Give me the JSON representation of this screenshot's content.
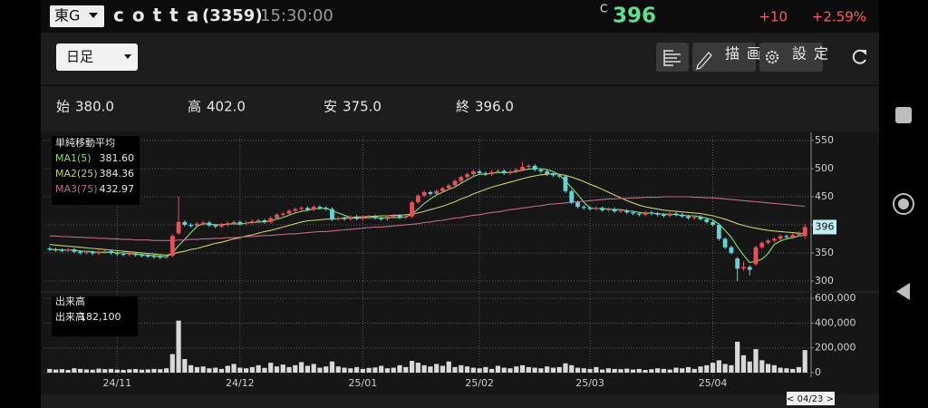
{
  "header": {
    "market": "東G",
    "name": "cotta",
    "code": "(3359)",
    "time": "15:30:00",
    "price_flag": "C",
    "price": "396",
    "change": "+10",
    "change_pct": "+2.59%"
  },
  "toolbar": {
    "period": "日足",
    "draw": "描画",
    "settings": "設定"
  },
  "ohlc": [
    {
      "label": "始",
      "value": "380.0"
    },
    {
      "label": "高",
      "value": "402.0"
    },
    {
      "label": "安",
      "value": "375.0"
    },
    {
      "label": "終",
      "value": "396.0"
    }
  ],
  "chart_data": {
    "type": "candlestick",
    "open": [
      358,
      356,
      355,
      354,
      356,
      352,
      350,
      351,
      349,
      352,
      353,
      350,
      348,
      347,
      349,
      346,
      345,
      344,
      343,
      342,
      345,
      385,
      405,
      400,
      398,
      402,
      404,
      399,
      397,
      400,
      403,
      405,
      402,
      404,
      406,
      408,
      405,
      412,
      418,
      420,
      425,
      428,
      430,
      427,
      432,
      430,
      428,
      410,
      412,
      410,
      414,
      411,
      413,
      415,
      412,
      410,
      414,
      416,
      413,
      415,
      440,
      452,
      458,
      455,
      460,
      465,
      470,
      478,
      485,
      490,
      495,
      492,
      490,
      494,
      496,
      492,
      495,
      498,
      503,
      505,
      498,
      495,
      490,
      488,
      486,
      460,
      440,
      432,
      430,
      428,
      430,
      426,
      428,
      424,
      425,
      422,
      420,
      418,
      422,
      420,
      418,
      416,
      420,
      418,
      415,
      412,
      414,
      410,
      405,
      400,
      375,
      360,
      340,
      322,
      325,
      330,
      360,
      368,
      372,
      375,
      380,
      378,
      382,
      380
    ],
    "high": [
      361,
      359,
      358,
      359,
      359,
      355,
      354,
      354,
      355,
      356,
      356,
      353,
      351,
      352,
      352,
      349,
      348,
      347,
      346,
      346,
      383,
      450,
      408,
      403,
      405,
      407,
      407,
      402,
      403,
      406,
      408,
      408,
      407,
      409,
      411,
      411,
      415,
      421,
      423,
      428,
      431,
      433,
      433,
      435,
      435,
      433,
      431,
      415,
      415,
      417,
      417,
      416,
      418,
      418,
      415,
      417,
      419,
      419,
      418,
      443,
      455,
      461,
      461,
      463,
      468,
      473,
      481,
      488,
      493,
      498,
      498,
      495,
      497,
      499,
      499,
      498,
      501,
      512,
      508,
      508,
      501,
      498,
      493,
      491,
      489,
      463,
      443,
      435,
      433,
      433,
      433,
      431,
      431,
      428,
      428,
      425,
      423,
      425,
      425,
      423,
      421,
      423,
      423,
      421,
      418,
      417,
      417,
      413,
      408,
      403,
      378,
      363,
      343,
      335,
      328,
      363,
      371,
      375,
      378,
      383,
      383,
      385,
      388,
      402
    ],
    "low": [
      353,
      352,
      351,
      351,
      349,
      347,
      347,
      346,
      346,
      349,
      347,
      345,
      344,
      344,
      343,
      342,
      341,
      340,
      339,
      339,
      342,
      382,
      397,
      395,
      395,
      399,
      396,
      394,
      394,
      397,
      400,
      399,
      399,
      401,
      403,
      402,
      402,
      409,
      415,
      417,
      422,
      425,
      424,
      424,
      427,
      425,
      407,
      407,
      407,
      407,
      408,
      408,
      410,
      409,
      407,
      407,
      411,
      410,
      410,
      412,
      437,
      449,
      452,
      452,
      457,
      462,
      467,
      475,
      482,
      487,
      489,
      487,
      487,
      491,
      489,
      489,
      492,
      495,
      500,
      495,
      492,
      487,
      485,
      483,
      457,
      437,
      429,
      427,
      425,
      425,
      423,
      423,
      421,
      421,
      419,
      417,
      415,
      415,
      417,
      415,
      413,
      413,
      415,
      412,
      409,
      409,
      407,
      402,
      397,
      372,
      357,
      347,
      300,
      318,
      310,
      327,
      357,
      365,
      369,
      372,
      375,
      375,
      379,
      375
    ],
    "close": [
      356,
      355,
      354,
      356,
      352,
      350,
      351,
      349,
      352,
      353,
      350,
      348,
      347,
      349,
      346,
      345,
      344,
      343,
      342,
      343,
      380,
      405,
      400,
      398,
      402,
      404,
      399,
      397,
      400,
      403,
      405,
      402,
      404,
      406,
      408,
      405,
      412,
      418,
      420,
      425,
      428,
      430,
      427,
      432,
      430,
      428,
      410,
      412,
      410,
      414,
      411,
      413,
      415,
      412,
      410,
      414,
      416,
      413,
      415,
      440,
      452,
      458,
      455,
      460,
      465,
      470,
      478,
      485,
      490,
      495,
      492,
      490,
      494,
      496,
      492,
      495,
      498,
      503,
      505,
      498,
      495,
      490,
      488,
      486,
      460,
      440,
      432,
      430,
      428,
      430,
      426,
      428,
      424,
      425,
      422,
      420,
      418,
      422,
      420,
      418,
      416,
      420,
      418,
      415,
      412,
      414,
      410,
      405,
      400,
      375,
      360,
      350,
      322,
      325,
      320,
      360,
      368,
      372,
      375,
      380,
      378,
      382,
      385,
      396
    ],
    "up_color": "#e8505a",
    "down_color": "#63d3da",
    "xlim": [
      -1,
      124
    ],
    "xticks": [
      {
        "value": 11,
        "label": "24/11"
      },
      {
        "value": 31,
        "label": "24/12"
      },
      {
        "value": 51,
        "label": "25/01"
      },
      {
        "value": 70,
        "label": "25/02"
      },
      {
        "value": 88,
        "label": "25/03"
      },
      {
        "value": 108,
        "label": "25/04"
      }
    ],
    "ylim": [
      287,
      558
    ],
    "yticks": [
      300,
      350,
      400,
      450,
      500,
      550
    ],
    "grid": true,
    "ma_title": "単純移動平均",
    "series": [
      {
        "name": "MA1(5)",
        "color": "#7fe07a",
        "current": {
          "value": 381.6,
          "label": "381.60"
        },
        "values": [
          356,
          356,
          355,
          355,
          355,
          353,
          353,
          352,
          351,
          351,
          351,
          350,
          350,
          349,
          348,
          347,
          346,
          345,
          344,
          343,
          350,
          363,
          374,
          386,
          397,
          402,
          401,
          400,
          400,
          401,
          402,
          401,
          403,
          404,
          405,
          405,
          407,
          410,
          413,
          417,
          421,
          424,
          426,
          428,
          429,
          430,
          425,
          421,
          417,
          413,
          411,
          412,
          413,
          413,
          412,
          413,
          413,
          413,
          414,
          419,
          428,
          438,
          446,
          453,
          458,
          463,
          467,
          474,
          480,
          486,
          490,
          490,
          492,
          493,
          493,
          493,
          495,
          497,
          499,
          500,
          500,
          498,
          495,
          489,
          478,
          466,
          454,
          440,
          430,
          429,
          429,
          428,
          427,
          427,
          425,
          424,
          422,
          421,
          421,
          420,
          419,
          419,
          418,
          417,
          416,
          416,
          414,
          412,
          409,
          401,
          390,
          378,
          361,
          346,
          333,
          335,
          339,
          349,
          365,
          371,
          375,
          377,
          380,
          381.6
        ]
      },
      {
        "name": "MA2(25)",
        "color": "#c8cf6a",
        "current": {
          "value": 384.36,
          "label": "384.36"
        },
        "values": [
          365,
          364,
          363,
          362,
          361,
          360,
          359,
          358,
          357,
          356,
          355,
          354,
          353,
          352,
          351,
          350,
          349,
          348,
          347,
          346,
          348,
          351,
          353,
          356,
          358,
          361,
          364,
          367,
          369,
          372,
          375,
          377,
          380,
          382,
          385,
          388,
          390,
          393,
          396,
          399,
          402,
          405,
          407,
          408,
          409,
          410,
          410,
          411,
          412,
          413,
          414,
          414,
          415,
          415,
          416,
          416,
          417,
          417,
          418,
          419,
          421,
          424,
          427,
          430,
          433,
          437,
          441,
          446,
          450,
          455,
          459,
          463,
          467,
          470,
          473,
          476,
          479,
          482,
          485,
          487,
          489,
          490,
          491,
          490,
          488,
          485,
          481,
          477,
          472,
          468,
          463,
          458,
          453,
          448,
          443,
          439,
          435,
          432,
          430,
          428,
          426,
          425,
          424,
          423,
          422,
          421,
          420,
          418,
          416,
          413,
          410,
          406,
          402,
          399,
          396,
          394,
          392,
          390,
          389,
          388,
          387,
          386,
          385,
          384.36
        ]
      },
      {
        "name": "MA3(75)",
        "color": "#c06a8c",
        "current": {
          "value": 432.97,
          "label": "432.97"
        },
        "values": [
          380,
          380,
          379,
          379,
          378,
          378,
          377,
          377,
          376,
          376,
          375,
          375,
          374,
          374,
          373,
          373,
          373,
          372,
          372,
          372,
          372,
          373,
          373,
          374,
          374,
          375,
          375,
          376,
          376,
          377,
          377,
          378,
          379,
          379,
          380,
          381,
          381,
          382,
          383,
          384,
          384,
          385,
          386,
          387,
          388,
          388,
          389,
          390,
          391,
          392,
          393,
          394,
          395,
          396,
          396,
          397,
          398,
          399,
          400,
          401,
          402,
          404,
          405,
          407,
          408,
          410,
          412,
          413,
          415,
          417,
          418,
          420,
          422,
          423,
          425,
          427,
          428,
          430,
          431,
          433,
          434,
          436,
          437,
          438,
          439,
          440,
          441,
          442,
          443,
          444,
          445,
          446,
          446,
          447,
          447,
          448,
          448,
          449,
          449,
          449,
          450,
          450,
          450,
          450,
          450,
          449,
          449,
          448,
          448,
          447,
          446,
          445,
          444,
          443,
          442,
          441,
          440,
          439,
          438,
          437,
          436,
          435,
          434,
          432.97
        ]
      }
    ],
    "current_price": 396,
    "volume": {
      "title": "出来高",
      "current_name": "出来高",
      "current": {
        "value": 182100,
        "label": "182,100"
      },
      "color": "#d8d8d8",
      "ylim": [
        0,
        630000
      ],
      "yticks": [
        0,
        {
          "value": 200000,
          "label": "200,000"
        },
        {
          "value": 400000,
          "label": "400,000"
        },
        {
          "value": 600000,
          "label": "600,000"
        }
      ],
      "values": [
        30000,
        25000,
        28000,
        22000,
        35000,
        30000,
        26000,
        24000,
        32000,
        28000,
        30000,
        25000,
        22000,
        27000,
        29000,
        24000,
        26000,
        30000,
        28000,
        35000,
        150000,
        420000,
        110000,
        60000,
        45000,
        50000,
        35000,
        40000,
        30000,
        55000,
        70000,
        40000,
        35000,
        45000,
        60000,
        38000,
        80000,
        50000,
        65000,
        45000,
        60000,
        85000,
        55000,
        70000,
        40000,
        50000,
        90000,
        50000,
        40000,
        35000,
        45000,
        30000,
        38000,
        42000,
        55000,
        35000,
        40000,
        60000,
        45000,
        95000,
        80000,
        60000,
        50000,
        70000,
        55000,
        90000,
        45000,
        60000,
        50000,
        40000,
        35000,
        45000,
        30000,
        55000,
        40000,
        35000,
        50000,
        60000,
        45000,
        40000,
        35000,
        50000,
        40000,
        45000,
        75000,
        60000,
        40000,
        35000,
        30000,
        45000,
        25000,
        35000,
        30000,
        28000,
        32000,
        25000,
        30000,
        22000,
        28000,
        35000,
        30000,
        25000,
        40000,
        35000,
        45000,
        30000,
        50000,
        60000,
        80000,
        100000,
        70000,
        60000,
        250000,
        140000,
        90000,
        190000,
        100000,
        70000,
        60000,
        40000,
        35000,
        30000,
        45000,
        182100
      ]
    },
    "cursor_label": "< 04/23 >"
  }
}
